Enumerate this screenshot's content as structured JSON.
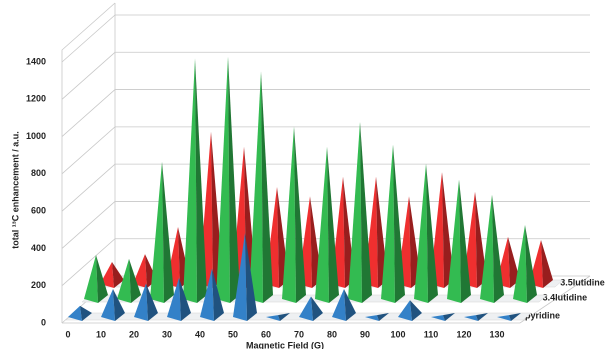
{
  "chart_data": {
    "type": "pyramid3d",
    "y_label": "total ¹³C enhancement / a.u.",
    "x_label": "Magnetic  Field (G)",
    "categories": [
      "0",
      "10",
      "20",
      "30",
      "40",
      "50",
      "60",
      "70",
      "80",
      "90",
      "100",
      "110",
      "120",
      "130"
    ],
    "ylim": [
      0,
      1400
    ],
    "yticks": [
      0,
      200,
      400,
      600,
      800,
      1000,
      1200,
      1400
    ],
    "grid": true,
    "series": [
      {
        "name": "pyridine",
        "color": "#2e75b6",
        "values": [
          60,
          150,
          180,
          210,
          260,
          450,
          10,
          110,
          150,
          10,
          90,
          10,
          10,
          10
        ]
      },
      {
        "name": "3.4lutidine",
        "color": "#2eaa4a",
        "values": [
          236,
          215,
          736,
          1290,
          1300,
          1220,
          925,
          817,
          950,
          828,
          726,
          640,
          560,
          397
        ]
      },
      {
        "name": "3.5lutidine",
        "color": "#d92b2b",
        "values": [
          118,
          160,
          306,
          817,
          736,
          520,
          470,
          575,
          575,
          470,
          600,
          495,
          253,
          236
        ]
      }
    ]
  }
}
